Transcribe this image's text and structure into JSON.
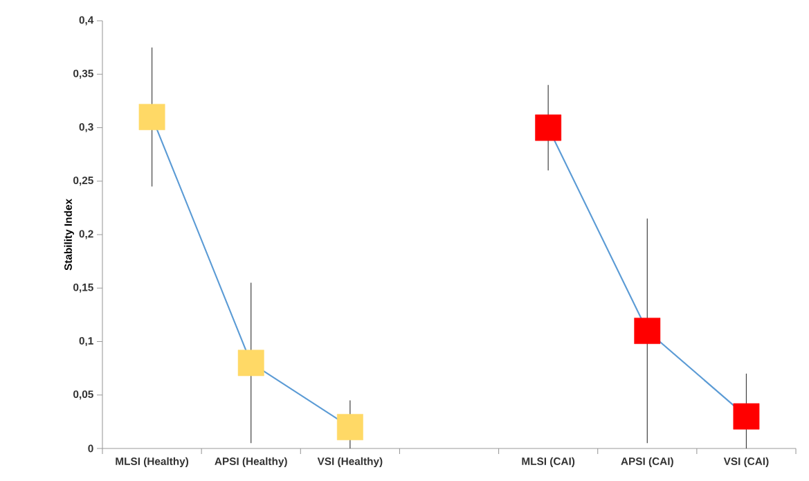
{
  "chart_data": {
    "type": "line",
    "ylabel": "Stability Index",
    "categories": [
      "MLSI (Healthy)",
      "APSI (Healthy)",
      "VSI (Healthy)",
      null,
      "MLSI (CAI)",
      "APSI (CAI)",
      "VSI (CAI)"
    ],
    "series": [
      {
        "color": "#5b9bd5",
        "colors": [
          "#ffd966",
          "#ffd966",
          "#ffd966",
          null,
          "#ff0000",
          "#ff0000",
          "#ff0000"
        ],
        "values": [
          0.31,
          0.08,
          0.02,
          null,
          0.3,
          0.11,
          0.03
        ],
        "errors": [
          [
            0.245,
            0.375
          ],
          [
            0.005,
            0.155
          ],
          [
            0.0,
            0.045
          ],
          null,
          [
            0.26,
            0.34
          ],
          [
            0.005,
            0.215
          ],
          [
            0.0,
            0.07
          ]
        ]
      }
    ],
    "ylim": [
      0,
      0.4
    ],
    "yticks": [
      {
        "value": 0,
        "label": "0"
      },
      {
        "value": 0.05,
        "label": "0,05"
      },
      {
        "value": 0.1,
        "label": "0,1"
      },
      {
        "value": 0.15,
        "label": "0,15"
      },
      {
        "value": 0.2,
        "label": "0,2"
      },
      {
        "value": 0.25,
        "label": "0,25"
      },
      {
        "value": 0.3,
        "label": "0,3"
      },
      {
        "value": 0.35,
        "label": "0,35"
      },
      {
        "value": 0.4,
        "label": "0,4"
      }
    ],
    "marker": "square",
    "line_style": "solid",
    "grid": false
  }
}
